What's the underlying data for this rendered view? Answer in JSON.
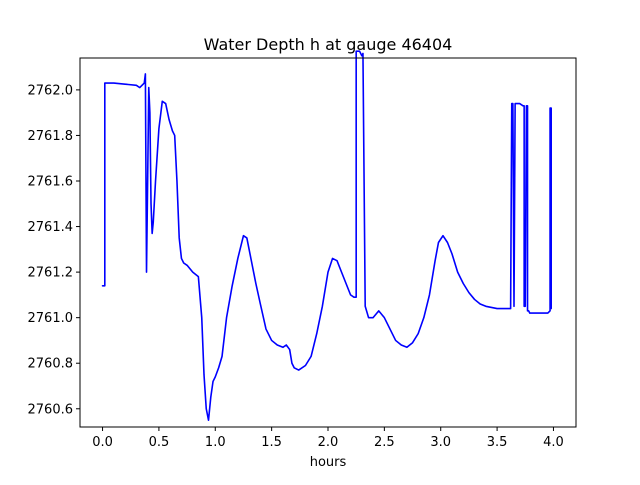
{
  "chart_data": {
    "type": "line",
    "title": "Water Depth h at gauge 46404",
    "xlabel": "hours",
    "ylabel": "",
    "xlim": [
      -0.2,
      4.2
    ],
    "ylim": [
      2760.52,
      2762.14
    ],
    "x_ticks": [
      0.0,
      0.5,
      1.0,
      1.5,
      2.0,
      2.5,
      3.0,
      3.5,
      4.0
    ],
    "x_tick_labels": [
      "0.0",
      "0.5",
      "1.0",
      "1.5",
      "2.0",
      "2.5",
      "3.0",
      "3.5",
      "4.0"
    ],
    "y_ticks": [
      2760.6,
      2760.8,
      2761.0,
      2761.2,
      2761.4,
      2761.6,
      2761.8,
      2762.0
    ],
    "y_tick_labels": [
      "2760.6",
      "2760.8",
      "2761.0",
      "2761.2",
      "2761.4",
      "2761.6",
      "2761.8",
      "2762.0"
    ],
    "grid": false,
    "series": [
      {
        "color": "#0000ff",
        "x": [
          0.0,
          0.02,
          0.02,
          0.1,
          0.2,
          0.3,
          0.33,
          0.37,
          0.38,
          0.39,
          0.39,
          0.4,
          0.41,
          0.42,
          0.43,
          0.44,
          0.45,
          0.47,
          0.5,
          0.53,
          0.56,
          0.59,
          0.62,
          0.64,
          0.66,
          0.68,
          0.7,
          0.72,
          0.75,
          0.8,
          0.85,
          0.88,
          0.9,
          0.92,
          0.94,
          0.96,
          0.98,
          1.0,
          1.03,
          1.06,
          1.1,
          1.15,
          1.2,
          1.25,
          1.28,
          1.32,
          1.36,
          1.4,
          1.45,
          1.5,
          1.55,
          1.6,
          1.63,
          1.66,
          1.68,
          1.7,
          1.74,
          1.8,
          1.85,
          1.9,
          1.95,
          2.0,
          2.04,
          2.08,
          2.12,
          2.16,
          2.2,
          2.23,
          2.25,
          2.25,
          2.28,
          2.3,
          2.31,
          2.33,
          2.36,
          2.4,
          2.45,
          2.5,
          2.55,
          2.6,
          2.65,
          2.7,
          2.75,
          2.8,
          2.85,
          2.9,
          2.95,
          2.98,
          3.02,
          3.06,
          3.1,
          3.15,
          3.2,
          3.25,
          3.3,
          3.35,
          3.4,
          3.5,
          3.6,
          3.62,
          3.63,
          3.64,
          3.65,
          3.65,
          3.66,
          3.67,
          3.67,
          3.7,
          3.73,
          3.74,
          3.74,
          3.75,
          3.76,
          3.77,
          3.77,
          3.78,
          3.79,
          3.85,
          3.9,
          3.95,
          3.97,
          3.97,
          3.98,
          3.98
        ],
        "y": [
          2761.14,
          2761.14,
          2762.03,
          2762.03,
          2762.025,
          2762.02,
          2762.01,
          2762.03,
          2762.07,
          2761.2,
          2761.2,
          2761.6,
          2762.01,
          2761.9,
          2761.5,
          2761.37,
          2761.42,
          2761.6,
          2761.83,
          2761.95,
          2761.94,
          2761.87,
          2761.82,
          2761.8,
          2761.6,
          2761.35,
          2761.26,
          2761.24,
          2761.23,
          2761.2,
          2761.18,
          2761.0,
          2760.75,
          2760.6,
          2760.55,
          2760.65,
          2760.72,
          2760.74,
          2760.78,
          2760.83,
          2761.0,
          2761.14,
          2761.26,
          2761.36,
          2761.35,
          2761.25,
          2761.15,
          2761.06,
          2760.95,
          2760.9,
          2760.88,
          2760.87,
          2760.88,
          2760.86,
          2760.8,
          2760.78,
          2760.77,
          2760.79,
          2760.83,
          2760.93,
          2761.05,
          2761.2,
          2761.26,
          2761.25,
          2761.2,
          2761.15,
          2761.1,
          2761.09,
          2761.09,
          2762.17,
          2762.17,
          2762.15,
          2762.16,
          2761.05,
          2761.0,
          2761.0,
          2761.03,
          2761.0,
          2760.95,
          2760.9,
          2760.88,
          2760.87,
          2760.89,
          2760.93,
          2761.0,
          2761.1,
          2761.25,
          2761.33,
          2761.36,
          2761.33,
          2761.28,
          2761.2,
          2761.15,
          2761.11,
          2761.08,
          2761.06,
          2761.05,
          2761.04,
          2761.04,
          2761.04,
          2761.94,
          2761.94,
          2761.05,
          2761.05,
          2761.94,
          2761.94,
          2761.94,
          2761.94,
          2761.93,
          2761.93,
          2761.05,
          2761.05,
          2761.93,
          2761.93,
          2761.03,
          2761.03,
          2761.02,
          2761.02,
          2761.02,
          2761.02,
          2761.03,
          2761.92,
          2761.92,
          2761.04
        ]
      }
    ]
  }
}
